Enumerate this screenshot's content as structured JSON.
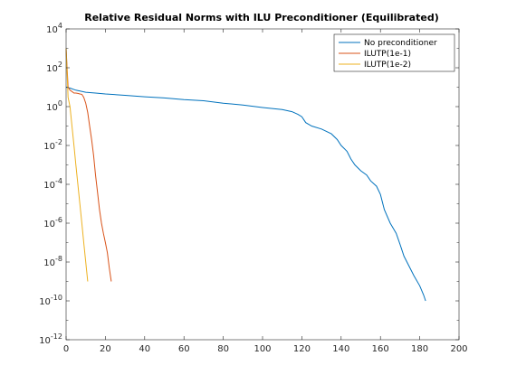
{
  "chart_data": {
    "type": "line",
    "title": "Relative Residual Norms with ILU Preconditioner (Equilibrated)",
    "xlabel": "",
    "ylabel": "",
    "xlim": [
      0,
      200
    ],
    "ylim": [
      1e-12,
      10000
    ],
    "yscale": "log",
    "grid": false,
    "legend_position": "top-right",
    "x_ticks": [
      0,
      20,
      40,
      60,
      80,
      100,
      120,
      140,
      160,
      180,
      200
    ],
    "x_tick_labels": [
      "0",
      "20",
      "40",
      "60",
      "80",
      "100",
      "120",
      "140",
      "160",
      "180",
      "200"
    ],
    "y_ticks": [
      1e-12,
      1e-10,
      1e-08,
      1e-06,
      0.0001,
      0.01,
      1,
      100,
      10000
    ],
    "y_tick_labels": [
      {
        "base": "10",
        "exp": "-12"
      },
      {
        "base": "10",
        "exp": "-10"
      },
      {
        "base": "10",
        "exp": "-8"
      },
      {
        "base": "10",
        "exp": "-6"
      },
      {
        "base": "10",
        "exp": "-4"
      },
      {
        "base": "10",
        "exp": "-2"
      },
      {
        "base": "10",
        "exp": "0"
      },
      {
        "base": "10",
        "exp": "2"
      },
      {
        "base": "10",
        "exp": "4"
      }
    ],
    "series": [
      {
        "name": "No preconditioner",
        "color": "#0072BD",
        "x": [
          0,
          2,
          5,
          10,
          15,
          20,
          30,
          40,
          50,
          60,
          70,
          80,
          90,
          100,
          110,
          115,
          118,
          120,
          122,
          125,
          130,
          135,
          138,
          140,
          143,
          145,
          147,
          150,
          153,
          155,
          158,
          160,
          162,
          165,
          168,
          170,
          172,
          175,
          177,
          180,
          182,
          183
        ],
        "y": [
          10,
          9,
          7,
          5.5,
          5,
          4.5,
          3.8,
          3.2,
          2.8,
          2.3,
          2,
          1.5,
          1.2,
          0.9,
          0.7,
          0.55,
          0.4,
          0.3,
          0.15,
          0.1,
          0.07,
          0.04,
          0.02,
          0.01,
          0.005,
          0.002,
          0.001,
          0.0005,
          0.0003,
          0.00015,
          8e-05,
          3e-05,
          5e-06,
          1e-06,
          3e-07,
          8e-08,
          2e-08,
          5e-09,
          2e-09,
          6e-10,
          2e-10,
          1e-10
        ]
      },
      {
        "name": "ILUTP(1e-1)",
        "color": "#D95319",
        "x": [
          0,
          1,
          2,
          3,
          4,
          5,
          6,
          7,
          8,
          9,
          10,
          11,
          12,
          13,
          14,
          15,
          16,
          17,
          18,
          19,
          20,
          21,
          22,
          23
        ],
        "y": [
          1000,
          10,
          7,
          6,
          5,
          5,
          4.8,
          4.5,
          4.3,
          3,
          1.5,
          0.5,
          0.1,
          0.02,
          0.003,
          0.0003,
          4e-05,
          5e-06,
          1e-06,
          3e-07,
          1e-07,
          3e-08,
          5e-09,
          1e-09
        ]
      },
      {
        "name": "ILUTP(1e-2)",
        "color": "#EDB120",
        "x": [
          0,
          1,
          2,
          3,
          4,
          5,
          6,
          7,
          8,
          9,
          10,
          11
        ],
        "y": [
          1000,
          3,
          1,
          0.1,
          0.01,
          0.001,
          0.0001,
          1e-05,
          1e-06,
          1e-07,
          1e-08,
          1e-09
        ]
      }
    ]
  }
}
